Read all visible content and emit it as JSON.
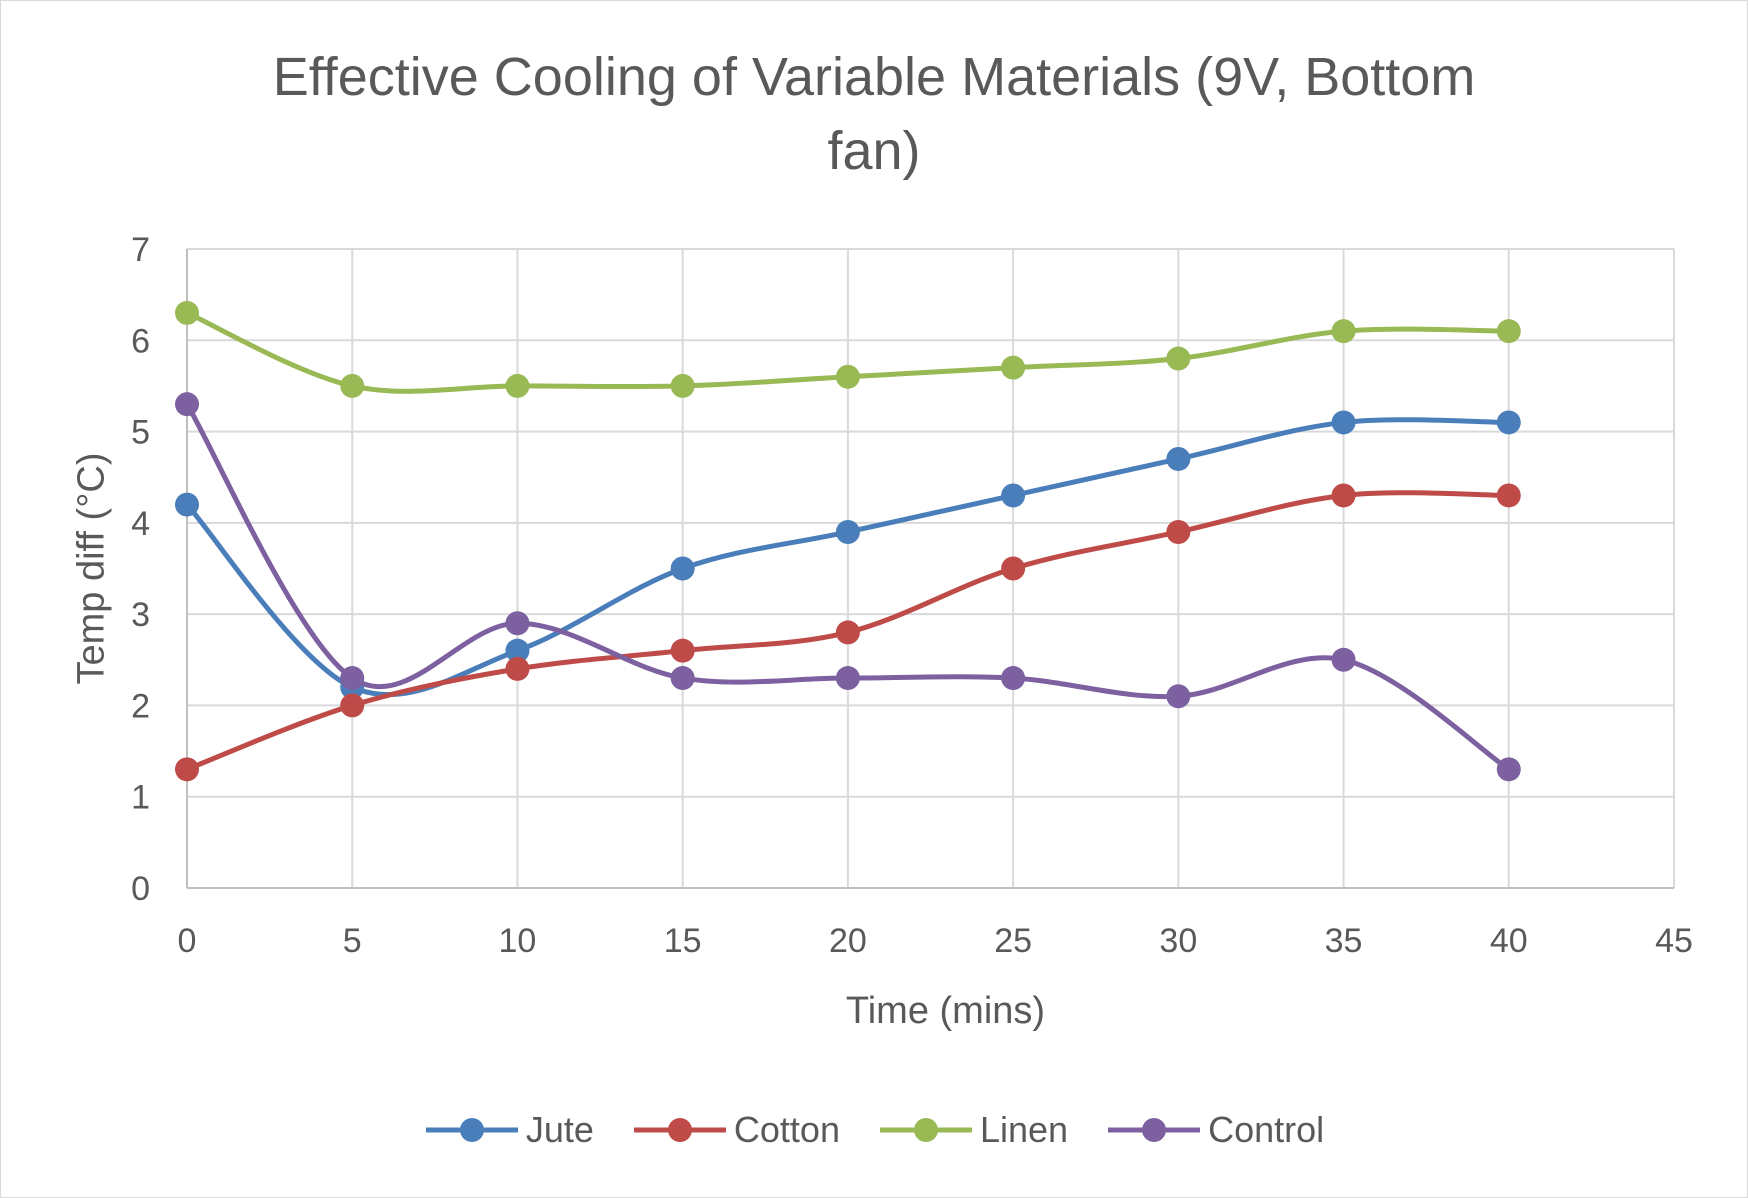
{
  "chart_data": {
    "type": "line",
    "title": "Effective Cooling of Variable Materials (9V, Bottom\nfan)",
    "xlabel": "Time (mins)",
    "ylabel": "Temp diff (°C)",
    "xlim": [
      0,
      45
    ],
    "ylim": [
      0,
      7
    ],
    "x_ticks": [
      0,
      5,
      10,
      15,
      20,
      25,
      30,
      35,
      40,
      45
    ],
    "y_ticks": [
      0,
      1,
      2,
      3,
      4,
      5,
      6,
      7
    ],
    "grid": true,
    "smoothed": true,
    "legend_position": "bottom",
    "x": [
      0,
      5,
      10,
      15,
      20,
      25,
      30,
      35,
      40
    ],
    "series": [
      {
        "name": "Jute",
        "color": "#4a7ebb",
        "values": [
          4.2,
          2.2,
          2.6,
          3.5,
          3.9,
          4.3,
          4.7,
          5.1,
          5.1
        ]
      },
      {
        "name": "Cotton",
        "color": "#be4b48",
        "values": [
          1.3,
          2.0,
          2.4,
          2.6,
          2.8,
          3.5,
          3.9,
          4.3,
          4.3
        ]
      },
      {
        "name": "Linen",
        "color": "#98b954",
        "values": [
          6.3,
          5.5,
          5.5,
          5.5,
          5.6,
          5.7,
          5.8,
          6.1,
          6.1
        ]
      },
      {
        "name": "Control",
        "color": "#7d60a0",
        "values": [
          5.3,
          2.3,
          2.9,
          2.3,
          2.3,
          2.3,
          2.1,
          2.5,
          1.3
        ]
      }
    ]
  }
}
